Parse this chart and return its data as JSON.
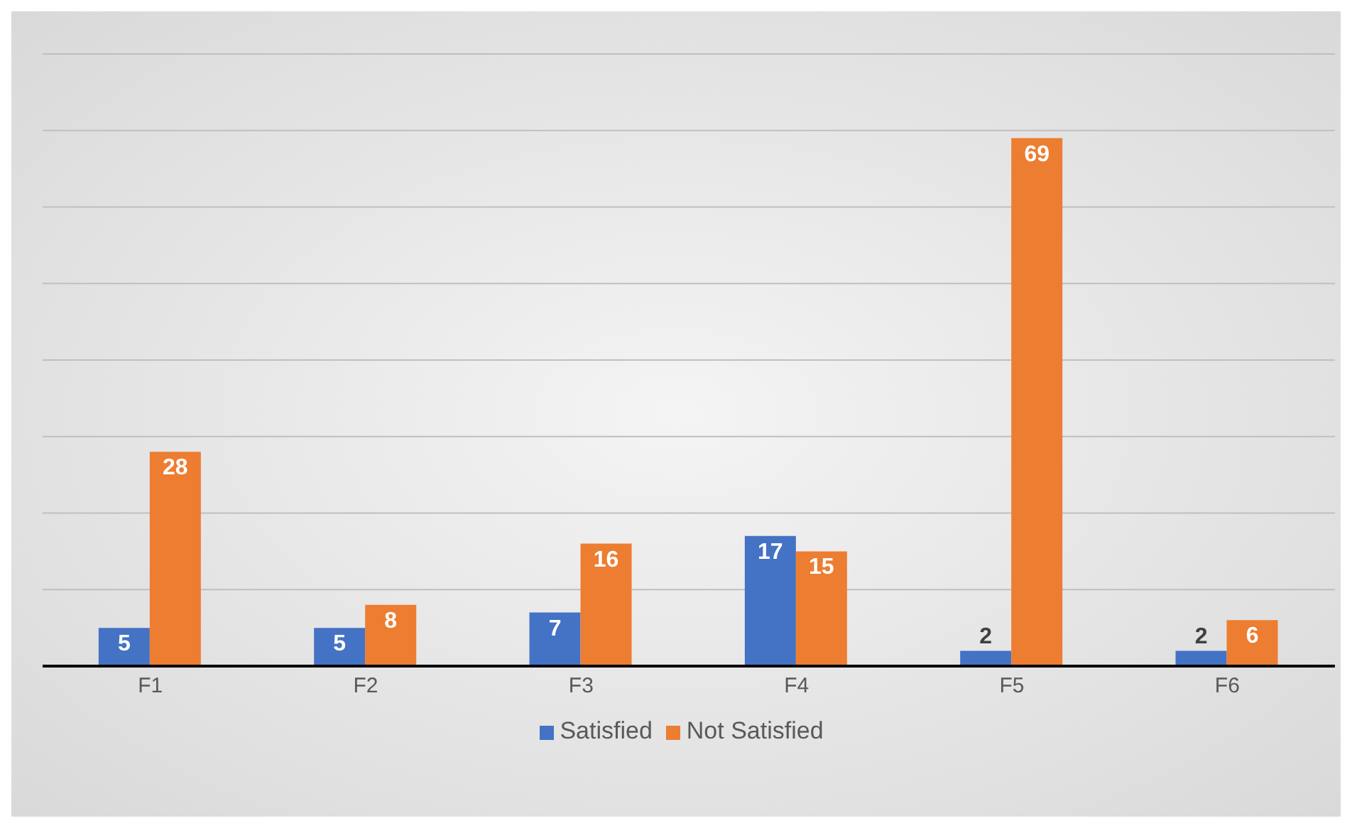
{
  "chart_data": {
    "type": "bar",
    "categories": [
      "F1",
      "F2",
      "F3",
      "F4",
      "F5",
      "F6"
    ],
    "series": [
      {
        "name": "Satisfied",
        "color": "#4472c4",
        "values": [
          5,
          5,
          7,
          17,
          2,
          2
        ]
      },
      {
        "name": "Not Satisfied",
        "color": "#ed7d31",
        "values": [
          28,
          8,
          16,
          15,
          69,
          6
        ]
      }
    ],
    "ylim": [
      0,
      80
    ],
    "yticks": [
      {
        "value": 0,
        "label": null
      },
      {
        "value": 10,
        "label": null
      },
      {
        "value": 20,
        "label": null
      },
      {
        "value": 30,
        "label": null
      },
      {
        "value": 40,
        "label": null
      },
      {
        "value": 50,
        "label": null
      },
      {
        "value": 60,
        "label": null
      },
      {
        "value": 70,
        "label": null
      },
      {
        "value": 80,
        "label": null
      }
    ],
    "grid": "y",
    "tick_labels": "x",
    "data_labels": true,
    "legend": "bottom"
  }
}
